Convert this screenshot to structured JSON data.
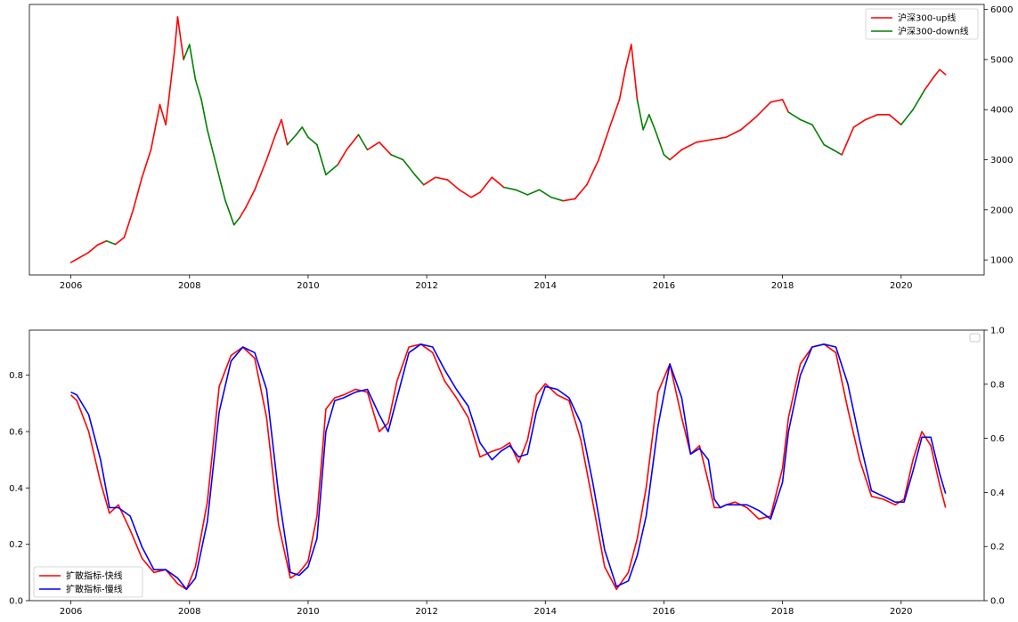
{
  "chart_data": [
    {
      "type": "line",
      "title": "",
      "xlabel": "",
      "ylabel": "",
      "x_ticks": [
        "2006",
        "2008",
        "2010",
        "2012",
        "2014",
        "2016",
        "2018",
        "2020"
      ],
      "xlim": [
        2005.3,
        2021.4
      ],
      "y_right_ticks": [
        "1000",
        "2000",
        "3000",
        "4000",
        "5000",
        "6000"
      ],
      "ylim_right": [
        700,
        6100
      ],
      "grid": false,
      "legend": {
        "placement": "upper right",
        "entries": [
          "沪深300-up线",
          "沪深300-down线"
        ]
      },
      "colors": {
        "up": "#ff0000",
        "down": "#008000"
      },
      "series": [
        {
          "name": "沪深300",
          "x": [
            2006.0,
            2006.15,
            2006.3,
            2006.45,
            2006.6,
            2006.75,
            2006.9,
            2007.05,
            2007.2,
            2007.35,
            2007.5,
            2007.6,
            2007.75,
            2007.8,
            2007.9,
            2008.0,
            2008.1,
            2008.2,
            2008.3,
            2008.45,
            2008.6,
            2008.75,
            2008.85,
            2008.95,
            2009.1,
            2009.3,
            2009.45,
            2009.55,
            2009.65,
            2009.8,
            2009.9,
            2010.0,
            2010.15,
            2010.3,
            2010.5,
            2010.65,
            2010.85,
            2011.0,
            2011.2,
            2011.4,
            2011.6,
            2011.8,
            2011.95,
            2012.15,
            2012.35,
            2012.55,
            2012.75,
            2012.9,
            2013.1,
            2013.3,
            2013.5,
            2013.7,
            2013.9,
            2014.1,
            2014.3,
            2014.5,
            2014.7,
            2014.9,
            2015.1,
            2015.25,
            2015.35,
            2015.45,
            2015.55,
            2015.65,
            2015.75,
            2015.85,
            2016.0,
            2016.1,
            2016.3,
            2016.55,
            2016.8,
            2017.05,
            2017.3,
            2017.55,
            2017.8,
            2018.0,
            2018.1,
            2018.3,
            2018.5,
            2018.7,
            2018.85,
            2019.0,
            2019.2,
            2019.4,
            2019.6,
            2019.8,
            2020.0,
            2020.2,
            2020.4,
            2020.55,
            2020.65,
            2020.75
          ],
          "y": [
            950,
            1050,
            1150,
            1300,
            1380,
            1310,
            1450,
            2000,
            2650,
            3200,
            4100,
            3700,
            5200,
            5850,
            5000,
            5300,
            4600,
            4200,
            3600,
            2900,
            2200,
            1700,
            1850,
            2050,
            2400,
            3000,
            3500,
            3800,
            3300,
            3500,
            3650,
            3450,
            3300,
            2700,
            2900,
            3200,
            3500,
            3200,
            3350,
            3100,
            3000,
            2700,
            2500,
            2650,
            2600,
            2400,
            2250,
            2350,
            2650,
            2450,
            2400,
            2300,
            2400,
            2250,
            2180,
            2220,
            2500,
            3000,
            3700,
            4200,
            4800,
            5300,
            4200,
            3600,
            3900,
            3600,
            3100,
            3000,
            3200,
            3350,
            3400,
            3450,
            3600,
            3850,
            4150,
            4200,
            3950,
            3800,
            3700,
            3300,
            3200,
            3100,
            3650,
            3800,
            3900,
            3900,
            3700,
            4000,
            4400,
            4650,
            4800,
            4700
          ],
          "direction": [
            "up",
            "up",
            "up",
            "up",
            "down",
            "up",
            "up",
            "up",
            "up",
            "up",
            "up",
            "up",
            "up",
            "up",
            "down",
            "down",
            "down",
            "down",
            "down",
            "down",
            "down",
            "down",
            "up",
            "up",
            "up",
            "up",
            "up",
            "up",
            "down",
            "down",
            "down",
            "down",
            "down",
            "down",
            "up",
            "up",
            "down",
            "up",
            "up",
            "down",
            "down",
            "down",
            "up",
            "up",
            "up",
            "up",
            "up",
            "up",
            "up",
            "down",
            "down",
            "down",
            "down",
            "down",
            "up",
            "up",
            "up",
            "up",
            "up",
            "up",
            "up",
            "up",
            "down",
            "down",
            "down",
            "down",
            "down",
            "up",
            "up",
            "up",
            "up",
            "up",
            "up",
            "up",
            "up",
            "up",
            "down",
            "down",
            "down",
            "down",
            "down",
            "up",
            "up",
            "up",
            "up",
            "up",
            "down",
            "down",
            "up",
            "up",
            "up",
            "up"
          ]
        }
      ]
    },
    {
      "type": "line",
      "title": "",
      "xlabel": "",
      "ylabel": "",
      "x_ticks": [
        "2006",
        "2008",
        "2010",
        "2012",
        "2014",
        "2016",
        "2018",
        "2020"
      ],
      "xlim": [
        2005.3,
        2021.4
      ],
      "y_left_ticks": [
        "0.0",
        "0.2",
        "0.4",
        "0.6",
        "0.8"
      ],
      "y_right_ticks": [
        "0.0",
        "0.2",
        "0.4",
        "0.6",
        "0.8",
        "1.0"
      ],
      "ylim": [
        0.0,
        0.96
      ],
      "ylim_right": [
        0.0,
        1.0
      ],
      "grid": false,
      "legend": {
        "placement": "lower left",
        "entries": [
          "扩散指标-快线",
          "扩散指标-慢线"
        ]
      },
      "series": [
        {
          "name": "扩散指标-快线",
          "color": "#ff0000",
          "x": [
            2006.0,
            2006.1,
            2006.3,
            2006.5,
            2006.65,
            2006.8,
            2007.0,
            2007.2,
            2007.4,
            2007.6,
            2007.8,
            2007.95,
            2008.1,
            2008.3,
            2008.5,
            2008.7,
            2008.9,
            2009.1,
            2009.3,
            2009.5,
            2009.7,
            2009.85,
            2010.0,
            2010.15,
            2010.3,
            2010.45,
            2010.6,
            2010.8,
            2011.0,
            2011.2,
            2011.35,
            2011.5,
            2011.7,
            2011.9,
            2012.1,
            2012.3,
            2012.5,
            2012.7,
            2012.9,
            2013.1,
            2013.25,
            2013.4,
            2013.55,
            2013.7,
            2013.85,
            2014.0,
            2014.2,
            2014.4,
            2014.6,
            2014.8,
            2015.0,
            2015.2,
            2015.4,
            2015.55,
            2015.7,
            2015.9,
            2016.1,
            2016.3,
            2016.45,
            2016.6,
            2016.75,
            2016.85,
            2016.95,
            2017.05,
            2017.2,
            2017.4,
            2017.6,
            2017.8,
            2018.0,
            2018.1,
            2018.3,
            2018.5,
            2018.7,
            2018.9,
            2019.1,
            2019.3,
            2019.5,
            2019.7,
            2019.9,
            2020.05,
            2020.2,
            2020.35,
            2020.5,
            2020.65,
            2020.75
          ],
          "y": [
            0.73,
            0.71,
            0.6,
            0.42,
            0.31,
            0.34,
            0.25,
            0.15,
            0.1,
            0.11,
            0.06,
            0.04,
            0.12,
            0.35,
            0.76,
            0.87,
            0.9,
            0.86,
            0.65,
            0.27,
            0.08,
            0.1,
            0.14,
            0.3,
            0.68,
            0.72,
            0.73,
            0.75,
            0.74,
            0.6,
            0.63,
            0.78,
            0.9,
            0.91,
            0.88,
            0.78,
            0.72,
            0.65,
            0.51,
            0.53,
            0.54,
            0.56,
            0.49,
            0.57,
            0.73,
            0.77,
            0.73,
            0.71,
            0.57,
            0.35,
            0.12,
            0.04,
            0.1,
            0.22,
            0.4,
            0.74,
            0.84,
            0.65,
            0.52,
            0.55,
            0.42,
            0.33,
            0.33,
            0.34,
            0.35,
            0.33,
            0.29,
            0.3,
            0.47,
            0.65,
            0.84,
            0.9,
            0.91,
            0.88,
            0.68,
            0.5,
            0.37,
            0.36,
            0.34,
            0.36,
            0.5,
            0.6,
            0.55,
            0.41,
            0.33
          ],
          "values_note": "y in data units; left axis"
        },
        {
          "name": "扩散指标-慢线",
          "color": "#0000ff",
          "x": [
            2006.0,
            2006.1,
            2006.3,
            2006.5,
            2006.65,
            2006.8,
            2007.0,
            2007.2,
            2007.4,
            2007.6,
            2007.8,
            2007.95,
            2008.1,
            2008.3,
            2008.5,
            2008.7,
            2008.9,
            2009.1,
            2009.3,
            2009.5,
            2009.7,
            2009.85,
            2010.0,
            2010.15,
            2010.3,
            2010.45,
            2010.6,
            2010.8,
            2011.0,
            2011.2,
            2011.35,
            2011.5,
            2011.7,
            2011.9,
            2012.1,
            2012.3,
            2012.5,
            2012.7,
            2012.9,
            2013.1,
            2013.25,
            2013.4,
            2013.55,
            2013.7,
            2013.85,
            2014.0,
            2014.2,
            2014.4,
            2014.6,
            2014.8,
            2015.0,
            2015.2,
            2015.4,
            2015.55,
            2015.7,
            2015.9,
            2016.1,
            2016.3,
            2016.45,
            2016.6,
            2016.75,
            2016.85,
            2016.95,
            2017.05,
            2017.2,
            2017.4,
            2017.6,
            2017.8,
            2018.0,
            2018.1,
            2018.3,
            2018.5,
            2018.7,
            2018.9,
            2019.1,
            2019.3,
            2019.5,
            2019.7,
            2019.9,
            2020.05,
            2020.2,
            2020.35,
            2020.5,
            2020.65,
            2020.75
          ],
          "y": [
            0.74,
            0.73,
            0.66,
            0.5,
            0.33,
            0.33,
            0.3,
            0.19,
            0.11,
            0.11,
            0.08,
            0.04,
            0.08,
            0.28,
            0.67,
            0.85,
            0.9,
            0.88,
            0.75,
            0.38,
            0.1,
            0.09,
            0.12,
            0.22,
            0.6,
            0.71,
            0.72,
            0.74,
            0.75,
            0.66,
            0.6,
            0.72,
            0.88,
            0.91,
            0.9,
            0.82,
            0.75,
            0.69,
            0.56,
            0.5,
            0.53,
            0.55,
            0.51,
            0.52,
            0.67,
            0.76,
            0.75,
            0.72,
            0.63,
            0.42,
            0.18,
            0.05,
            0.07,
            0.16,
            0.3,
            0.62,
            0.84,
            0.72,
            0.52,
            0.54,
            0.5,
            0.36,
            0.33,
            0.34,
            0.34,
            0.34,
            0.32,
            0.29,
            0.42,
            0.6,
            0.8,
            0.9,
            0.91,
            0.9,
            0.77,
            0.57,
            0.39,
            0.37,
            0.35,
            0.35,
            0.46,
            0.58,
            0.58,
            0.45,
            0.38
          ],
          "values_note": "y in data units; left axis"
        }
      ]
    }
  ]
}
